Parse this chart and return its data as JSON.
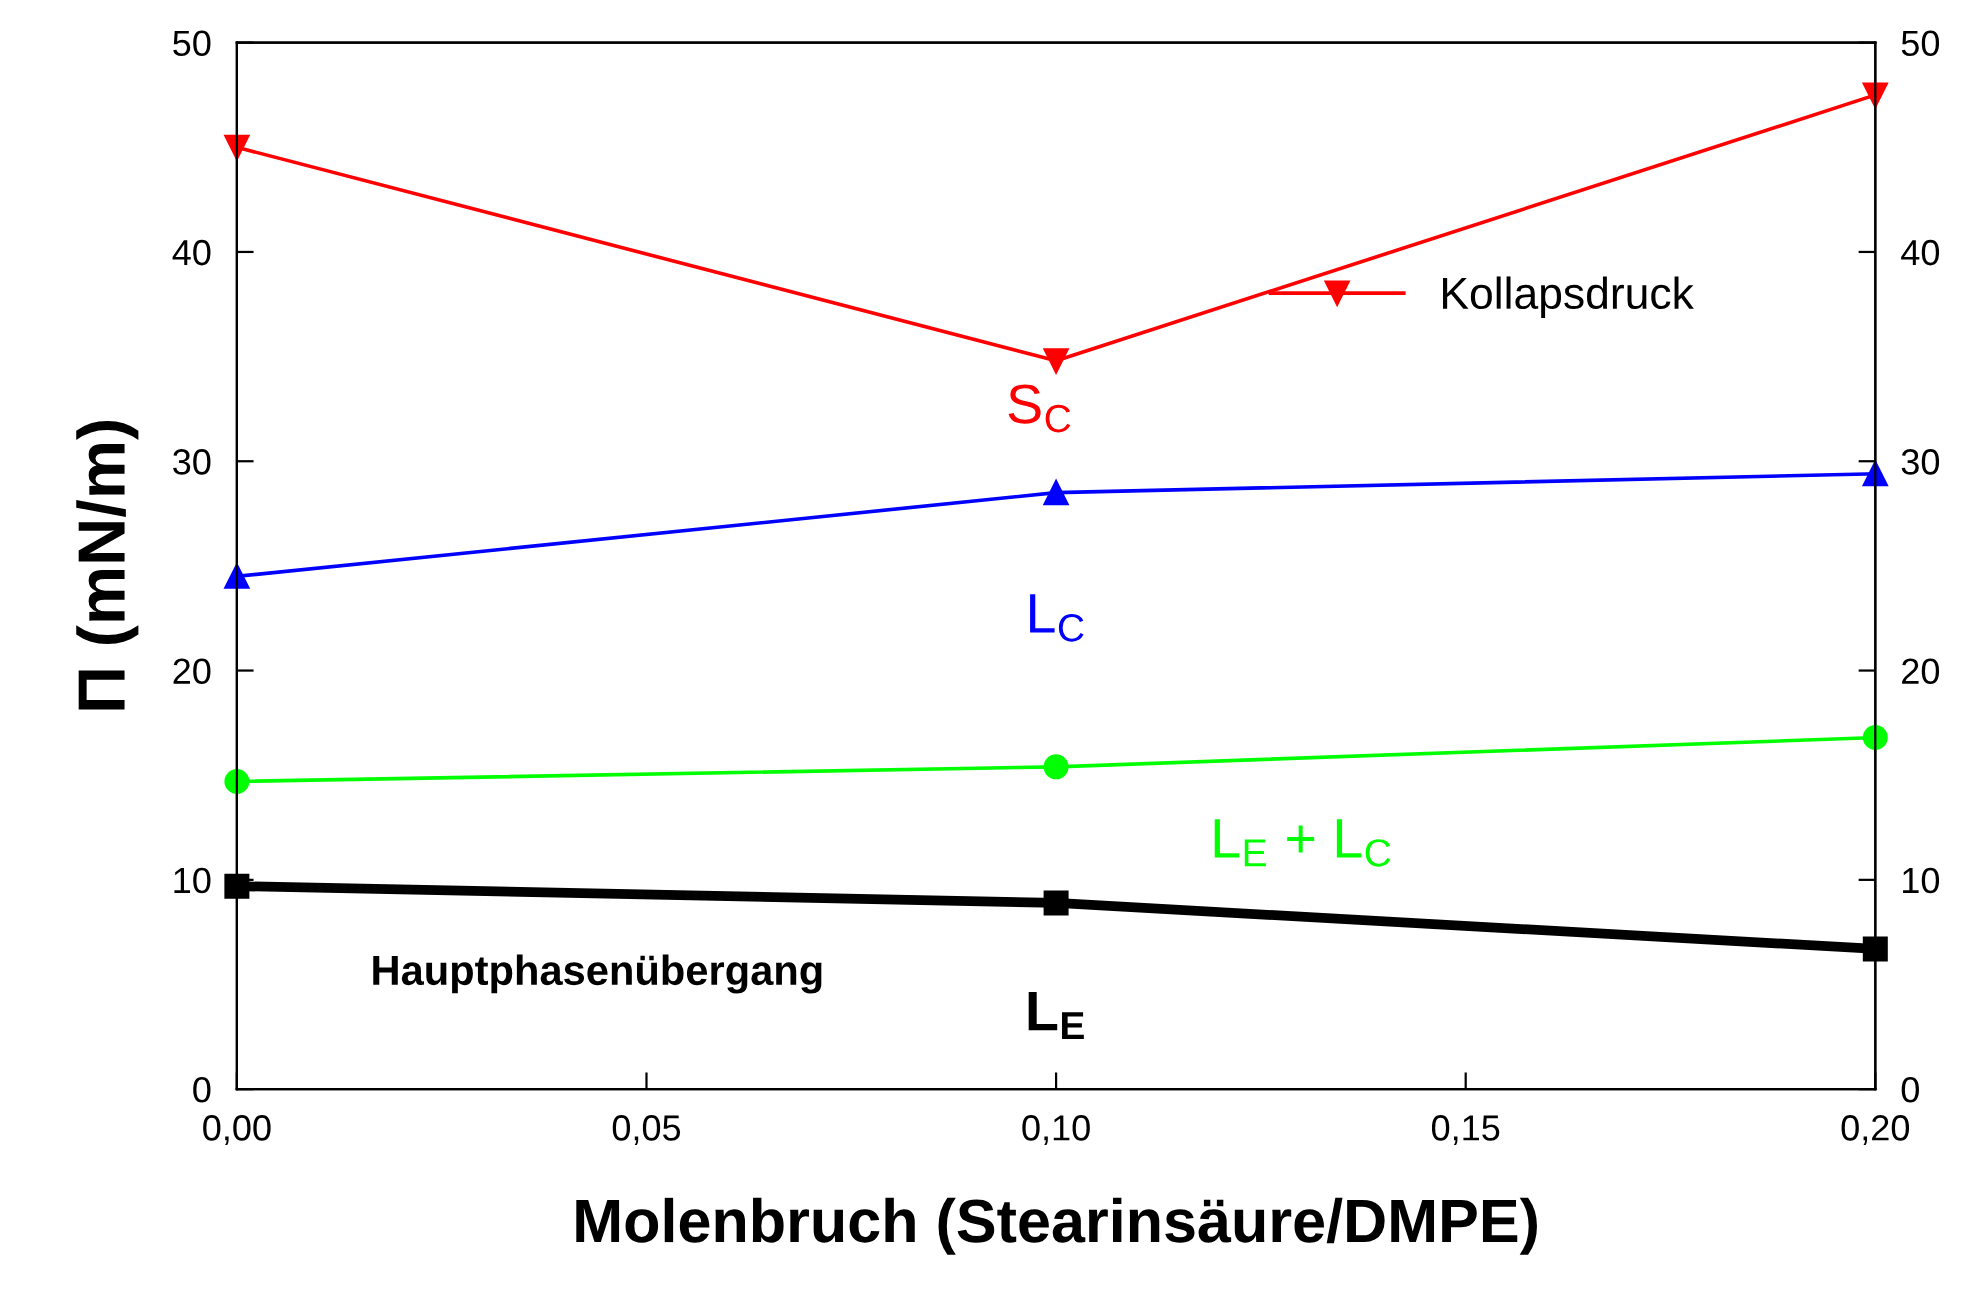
{
  "chart_data": {
    "type": "line",
    "xlabel": "Molenbruch (Stearinsäure/DMPE)",
    "ylabel": "Π (mN/m)",
    "x": [
      0.0,
      0.1,
      0.2
    ],
    "series": [
      {
        "name": "Kollapsdruck",
        "color": "#ff0000",
        "values": [
          45.0,
          34.8,
          47.5
        ],
        "marker": "triangle_down"
      },
      {
        "color": "#0000ff",
        "values": [
          24.5,
          28.5,
          29.4
        ],
        "marker": "triangle"
      },
      {
        "color": "#00ff00",
        "values": [
          14.7,
          15.4,
          16.8
        ],
        "marker": "circle"
      },
      {
        "color": "#000000",
        "values": [
          9.7,
          8.9,
          6.7
        ],
        "marker": "square"
      }
    ],
    "xlim": [
      0.0,
      0.2
    ],
    "xticks": [
      {
        "value": 0.0,
        "label": "0,00"
      },
      {
        "value": 0.05,
        "label": "0,05"
      },
      {
        "value": 0.1,
        "label": "0,10"
      },
      {
        "value": 0.15,
        "label": "0,15"
      },
      {
        "value": 0.2,
        "label": "0,20"
      }
    ],
    "ylim": [
      0,
      50
    ],
    "yticks": [
      0,
      10,
      20,
      30,
      40,
      50
    ],
    "y2lim": [
      0,
      50
    ],
    "y2ticks": [
      0,
      10,
      20,
      30,
      40,
      50
    ],
    "annotations": [
      "S$_{C}$",
      "L$_{C}$",
      "L$_{E}$ + L$_{C}$",
      "L$_{E}$",
      "Hauptphasenübergang"
    ],
    "legend": "top right",
    "grid": false
  }
}
